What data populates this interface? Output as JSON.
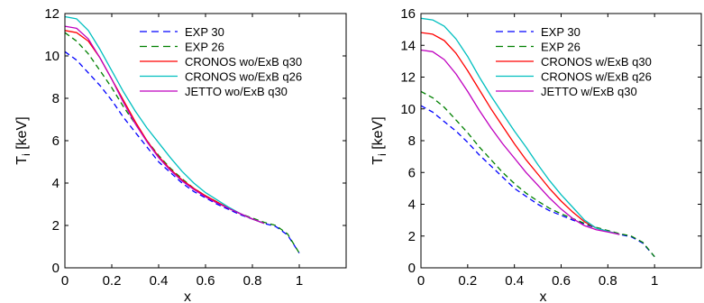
{
  "chart_data": [
    {
      "type": "line",
      "xlabel": "x",
      "ylabel": "T_i [keV]",
      "xlim": [
        0,
        1.2
      ],
      "ylim": [
        0,
        12
      ],
      "xticks": [
        0,
        0.2,
        0.4,
        0.6,
        0.8,
        1
      ],
      "yticks": [
        0,
        2,
        4,
        6,
        8,
        10,
        12
      ],
      "xtick_labels": [
        "0",
        "0.2",
        "0.4",
        "0.6",
        "0.8",
        "1"
      ],
      "ytick_labels": [
        "0",
        "2",
        "4",
        "6",
        "8",
        "10",
        "12"
      ],
      "grid": false,
      "legend_position": "top-right",
      "series": [
        {
          "name": "EXP 30",
          "color": "#0000ff",
          "dash": "dashed",
          "x": [
            0,
            0.05,
            0.1,
            0.15,
            0.2,
            0.25,
            0.3,
            0.35,
            0.4,
            0.45,
            0.5,
            0.55,
            0.6,
            0.65,
            0.7,
            0.75,
            0.8,
            0.85,
            0.9,
            0.95,
            1.0
          ],
          "y": [
            10.2,
            9.8,
            9.2,
            8.6,
            7.9,
            7.1,
            6.4,
            5.7,
            5.0,
            4.5,
            4.0,
            3.6,
            3.3,
            3.0,
            2.75,
            2.5,
            2.3,
            2.1,
            1.95,
            1.55,
            0.7
          ]
        },
        {
          "name": "EXP 26",
          "color": "#008000",
          "dash": "dashed",
          "x": [
            0,
            0.05,
            0.1,
            0.15,
            0.2,
            0.25,
            0.3,
            0.35,
            0.4,
            0.45,
            0.5,
            0.55,
            0.6,
            0.65,
            0.7,
            0.75,
            0.8,
            0.85,
            0.9,
            0.95,
            1.0
          ],
          "y": [
            11.1,
            10.7,
            10.1,
            9.3,
            8.5,
            7.6,
            6.8,
            6.0,
            5.3,
            4.7,
            4.2,
            3.75,
            3.4,
            3.1,
            2.8,
            2.55,
            2.35,
            2.15,
            2.0,
            1.6,
            0.7
          ]
        },
        {
          "name": "CRONOS wo/ExB q30",
          "color": "#ff0000",
          "dash": "solid",
          "x": [
            0,
            0.05,
            0.1,
            0.15,
            0.2,
            0.25,
            0.3,
            0.35,
            0.4,
            0.45,
            0.5,
            0.55,
            0.6,
            0.65,
            0.7,
            0.75,
            0.8,
            0.85
          ],
          "y": [
            11.2,
            11.1,
            10.7,
            9.9,
            8.9,
            7.9,
            6.9,
            6.0,
            5.25,
            4.65,
            4.15,
            3.75,
            3.4,
            3.1,
            2.8,
            2.55,
            2.3,
            2.1
          ]
        },
        {
          "name": "CRONOS wo/ExB q26",
          "color": "#00bfbf",
          "dash": "solid",
          "x": [
            0,
            0.05,
            0.1,
            0.15,
            0.2,
            0.25,
            0.3,
            0.35,
            0.4,
            0.45,
            0.5,
            0.55,
            0.6,
            0.65,
            0.7,
            0.75,
            0.8,
            0.85
          ],
          "y": [
            11.85,
            11.75,
            11.2,
            10.3,
            9.3,
            8.3,
            7.4,
            6.6,
            5.9,
            5.2,
            4.55,
            4.0,
            3.55,
            3.2,
            2.85,
            2.55,
            2.3,
            2.1
          ]
        },
        {
          "name": "JETTO wo/ExB q30",
          "color": "#bf00bf",
          "dash": "solid",
          "x": [
            0,
            0.05,
            0.1,
            0.15,
            0.2,
            0.25,
            0.3,
            0.35,
            0.4,
            0.45,
            0.5,
            0.55,
            0.6,
            0.65,
            0.7,
            0.75,
            0.8,
            0.85
          ],
          "y": [
            11.4,
            11.3,
            10.8,
            9.9,
            8.9,
            7.8,
            6.8,
            5.95,
            5.2,
            4.6,
            4.1,
            3.7,
            3.35,
            3.05,
            2.8,
            2.55,
            2.3,
            2.1
          ]
        }
      ]
    },
    {
      "type": "line",
      "xlabel": "x",
      "ylabel": "T_i [keV]",
      "xlim": [
        0,
        1.2
      ],
      "ylim": [
        0,
        16
      ],
      "xticks": [
        0,
        0.2,
        0.4,
        0.6,
        0.8,
        1
      ],
      "yticks": [
        0,
        2,
        4,
        6,
        8,
        10,
        12,
        14,
        16
      ],
      "xtick_labels": [
        "0",
        "0.2",
        "0.4",
        "0.6",
        "0.8",
        "1"
      ],
      "ytick_labels": [
        "0",
        "2",
        "4",
        "6",
        "8",
        "10",
        "12",
        "14",
        "16"
      ],
      "grid": false,
      "legend_position": "top-right",
      "series": [
        {
          "name": "EXP 30",
          "color": "#0000ff",
          "dash": "dashed",
          "x": [
            0,
            0.05,
            0.1,
            0.15,
            0.2,
            0.25,
            0.3,
            0.35,
            0.4,
            0.45,
            0.5,
            0.55,
            0.6,
            0.65,
            0.7,
            0.75,
            0.8,
            0.85,
            0.9,
            0.95,
            1.0
          ],
          "y": [
            10.2,
            9.8,
            9.2,
            8.6,
            7.9,
            7.1,
            6.4,
            5.7,
            5.0,
            4.5,
            4.0,
            3.6,
            3.3,
            3.0,
            2.75,
            2.5,
            2.3,
            2.1,
            1.95,
            1.55,
            0.7
          ]
        },
        {
          "name": "EXP 26",
          "color": "#008000",
          "dash": "dashed",
          "x": [
            0,
            0.05,
            0.1,
            0.15,
            0.2,
            0.25,
            0.3,
            0.35,
            0.4,
            0.45,
            0.5,
            0.55,
            0.6,
            0.65,
            0.7,
            0.75,
            0.8,
            0.85,
            0.9,
            0.95,
            1.0
          ],
          "y": [
            11.1,
            10.7,
            10.1,
            9.3,
            8.5,
            7.6,
            6.8,
            6.0,
            5.3,
            4.7,
            4.2,
            3.75,
            3.4,
            3.1,
            2.8,
            2.55,
            2.35,
            2.15,
            2.0,
            1.6,
            0.7
          ]
        },
        {
          "name": "CRONOS w/ExB q30",
          "color": "#ff0000",
          "dash": "solid",
          "x": [
            0,
            0.05,
            0.1,
            0.15,
            0.2,
            0.25,
            0.3,
            0.35,
            0.4,
            0.45,
            0.5,
            0.55,
            0.6,
            0.65,
            0.7,
            0.75,
            0.8,
            0.85
          ],
          "y": [
            14.8,
            14.7,
            14.3,
            13.5,
            12.4,
            11.2,
            10.0,
            8.9,
            7.8,
            6.8,
            5.9,
            5.0,
            4.2,
            3.5,
            2.9,
            2.5,
            2.3,
            2.1
          ]
        },
        {
          "name": "CRONOS w/ExB q26",
          "color": "#00bfbf",
          "dash": "solid",
          "x": [
            0,
            0.05,
            0.1,
            0.15,
            0.2,
            0.25,
            0.3,
            0.35,
            0.4,
            0.45,
            0.5,
            0.55,
            0.6,
            0.65,
            0.7,
            0.75,
            0.8,
            0.85
          ],
          "y": [
            15.7,
            15.6,
            15.2,
            14.4,
            13.3,
            12.0,
            10.8,
            9.7,
            8.6,
            7.6,
            6.5,
            5.5,
            4.6,
            3.8,
            3.0,
            2.5,
            2.3,
            2.1
          ]
        },
        {
          "name": "JETTO w/ExB q30",
          "color": "#bf00bf",
          "dash": "solid",
          "x": [
            0,
            0.05,
            0.1,
            0.15,
            0.2,
            0.25,
            0.3,
            0.35,
            0.4,
            0.45,
            0.5,
            0.55,
            0.6,
            0.65,
            0.7,
            0.75,
            0.8,
            0.85
          ],
          "y": [
            13.7,
            13.6,
            13.1,
            12.2,
            11.1,
            9.9,
            8.8,
            7.8,
            6.9,
            6.0,
            5.2,
            4.4,
            3.7,
            3.1,
            2.65,
            2.4,
            2.25,
            2.1
          ]
        }
      ]
    }
  ]
}
